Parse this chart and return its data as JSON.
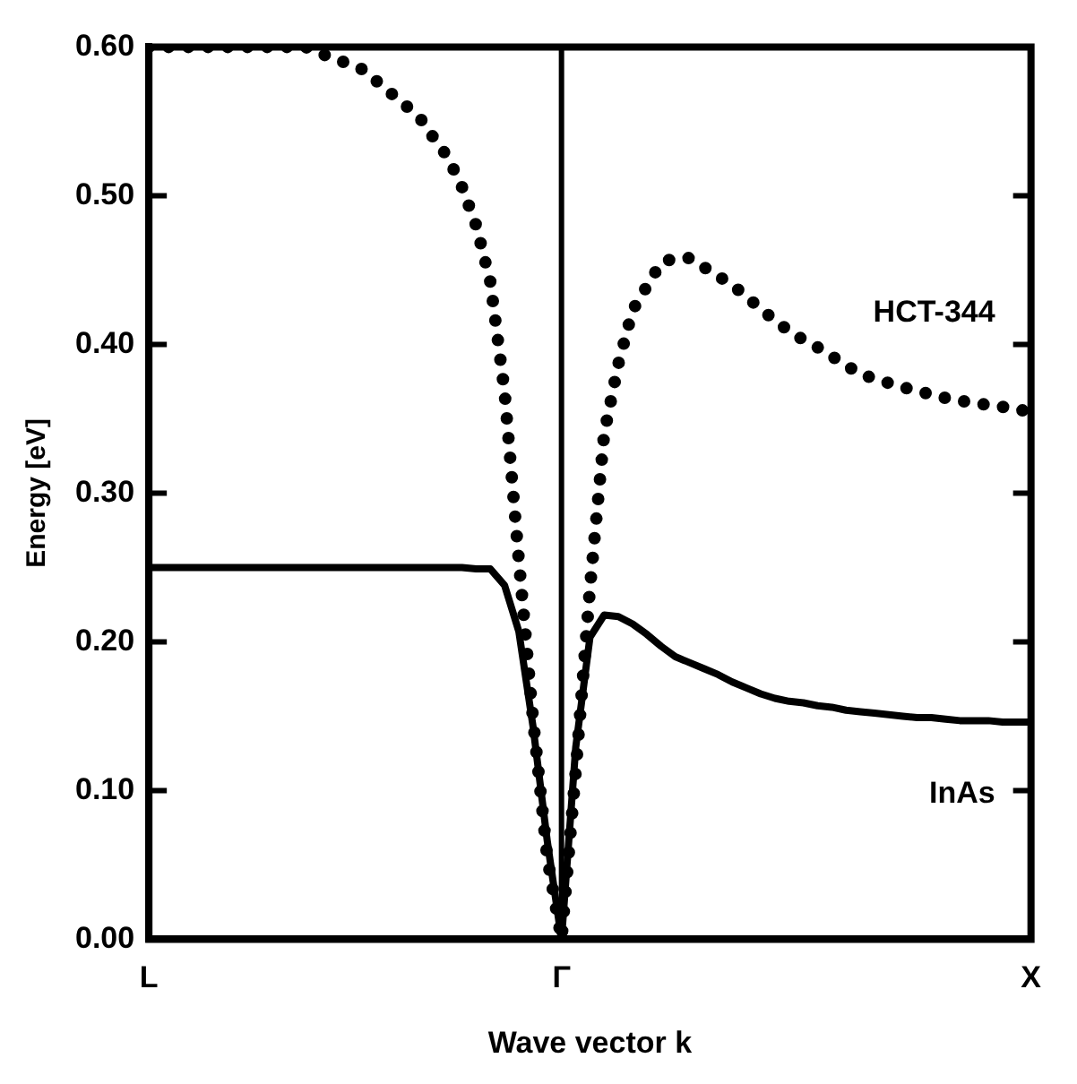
{
  "chart_data": {
    "type": "line",
    "xlabel": "Wave vector k",
    "ylabel": "Energy [eV]",
    "categories": [
      "L",
      null,
      null,
      null,
      null,
      null,
      null,
      null,
      null,
      null,
      null,
      null,
      null,
      null,
      null,
      null,
      null,
      null,
      null,
      null,
      null,
      null,
      null,
      null,
      null,
      null,
      null,
      null,
      null,
      "Γ",
      null,
      null,
      null,
      null,
      null,
      null,
      null,
      null,
      null,
      null,
      null,
      null,
      null,
      null,
      null,
      null,
      null,
      null,
      null,
      null,
      null,
      null,
      null,
      null,
      null,
      null,
      null,
      null,
      null,
      null,
      null,
      null,
      "X"
    ],
    "ylim": [
      0,
      0.6
    ],
    "yticks": [
      {
        "value": 0,
        "label": "0.00"
      },
      {
        "value": 0.1,
        "label": "0.10"
      },
      {
        "value": 0.2,
        "label": "0.20"
      },
      {
        "value": 0.3,
        "label": "0.30"
      },
      {
        "value": 0.4,
        "label": "0.40"
      },
      {
        "value": 0.5,
        "label": "0.50"
      },
      {
        "value": 0.6,
        "label": "0.60"
      }
    ],
    "ref_lines": [
      {
        "axis": "x",
        "value": "Γ",
        "color": "#000000"
      }
    ],
    "series": [
      {
        "name": "HCT-344",
        "color": "#000000",
        "line_style": "dotted",
        "values": [
          0.6,
          0.6,
          0.6,
          0.6,
          0.6,
          0.6,
          0.6,
          0.6,
          0.6,
          0.6,
          0.6,
          0.6,
          0.596,
          0.592,
          0.589,
          0.585,
          0.577,
          0.569,
          0.561,
          0.553,
          0.539,
          0.526,
          0.506,
          0.48,
          0.442,
          0.368,
          0.255,
          0.148,
          0.055,
          0,
          0.113,
          0.236,
          0.34,
          0.387,
          0.423,
          0.439,
          0.455,
          0.458,
          0.458,
          0.452,
          0.446,
          0.44,
          0.432,
          0.424,
          0.416,
          0.409,
          0.403,
          0.398,
          0.392,
          0.386,
          0.38,
          0.377,
          0.374,
          0.371,
          0.369,
          0.366,
          0.364,
          0.362,
          0.361,
          0.359,
          0.358,
          0.356,
          0.355
        ]
      },
      {
        "name": "InAs",
        "color": "#000000",
        "line_style": "solid",
        "values": [
          0.25,
          0.25,
          0.25,
          0.25,
          0.25,
          0.25,
          0.25,
          0.25,
          0.25,
          0.25,
          0.25,
          0.25,
          0.25,
          0.25,
          0.25,
          0.25,
          0.25,
          0.25,
          0.25,
          0.25,
          0.25,
          0.25,
          0.25,
          0.249,
          0.249,
          0.238,
          0.207,
          0.143,
          0.066,
          0,
          0.129,
          0.203,
          0.218,
          0.217,
          0.212,
          0.205,
          0.197,
          0.19,
          0.186,
          0.182,
          0.178,
          0.173,
          0.169,
          0.165,
          0.162,
          0.16,
          0.159,
          0.157,
          0.156,
          0.154,
          0.153,
          0.152,
          0.151,
          0.15,
          0.149,
          0.149,
          0.148,
          0.147,
          0.147,
          0.147,
          0.146,
          0.146,
          0.146
        ]
      }
    ]
  }
}
